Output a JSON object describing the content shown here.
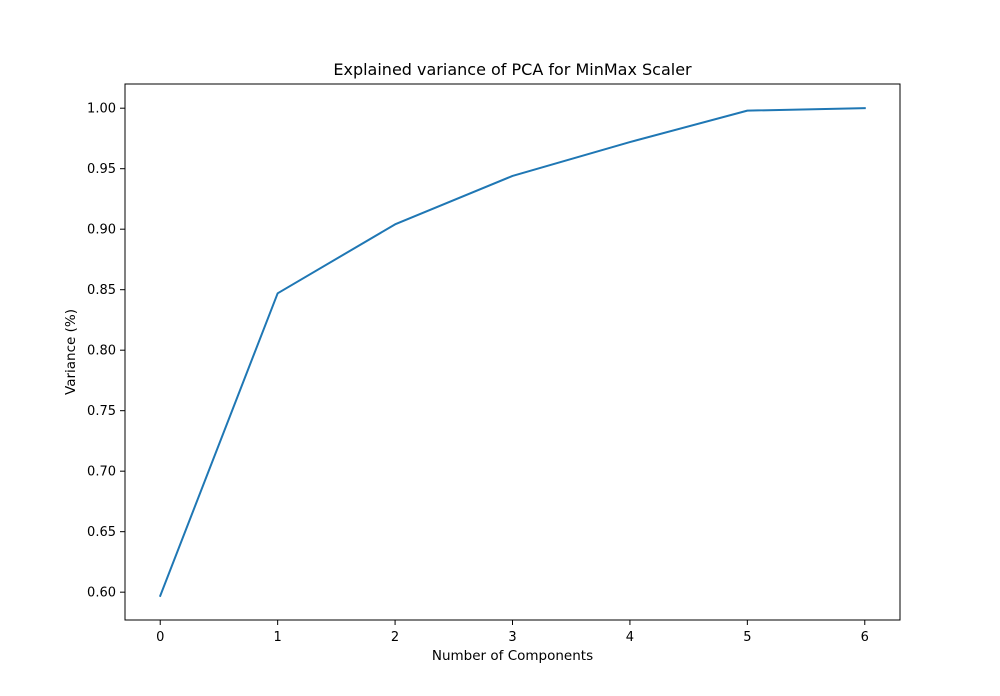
{
  "chart_data": {
    "type": "line",
    "title": "Explained variance of PCA for MinMax Scaler",
    "xlabel": "Number of Components",
    "ylabel": "Variance (%)",
    "x": [
      0,
      1,
      2,
      3,
      4,
      5,
      6
    ],
    "series": [
      {
        "values": [
          0.597,
          0.847,
          0.904,
          0.944,
          0.972,
          0.998,
          1.0
        ],
        "color": "#1f77b4"
      }
    ],
    "xlim": [
      -0.3,
      6.3
    ],
    "ylim": [
      0.577,
      1.02
    ],
    "xticks": [
      0,
      1,
      2,
      3,
      4,
      5,
      6
    ],
    "xtick_labels": [
      "0",
      "1",
      "2",
      "3",
      "4",
      "5",
      "6"
    ],
    "yticks": [
      0.6,
      0.65,
      0.7,
      0.75,
      0.8,
      0.85,
      0.9,
      0.95,
      1.0
    ],
    "ytick_labels": [
      "0.60",
      "0.65",
      "0.70",
      "0.75",
      "0.80",
      "0.85",
      "0.90",
      "0.95",
      "1.00"
    ],
    "grid": false,
    "legend": "none"
  }
}
